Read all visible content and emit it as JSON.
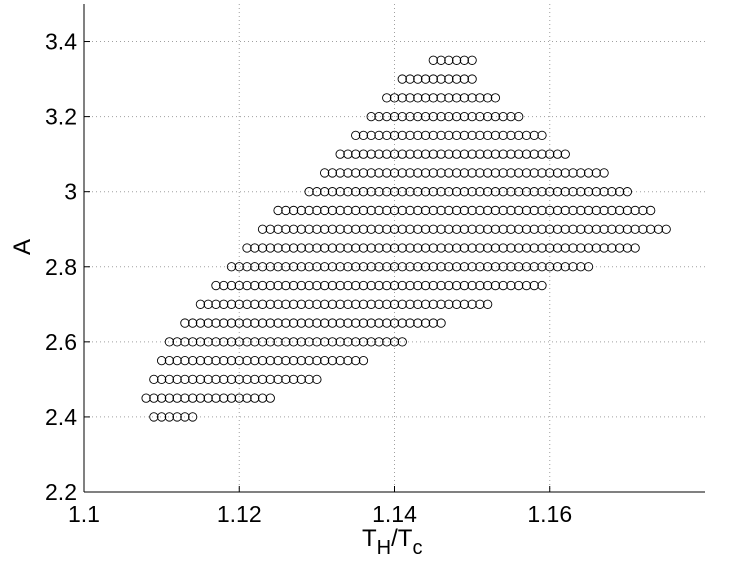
{
  "chart_data": {
    "type": "scatter",
    "title": "",
    "xlabel": "T_H/T_c",
    "xlabel_parts": {
      "main": "T",
      "sub1": "H",
      "slash": "/",
      "main2": "T",
      "sub2": "c"
    },
    "ylabel": "A",
    "xlim": [
      1.1,
      1.18
    ],
    "ylim": [
      2.2,
      3.5
    ],
    "xticks": [
      1.1,
      1.12,
      1.14,
      1.16
    ],
    "xtick_labels": [
      "1.1",
      "1.12",
      "1.14",
      "1.16"
    ],
    "yticks": [
      2.2,
      2.4,
      2.6,
      2.8,
      3.0,
      3.2,
      3.4
    ],
    "ytick_labels": [
      "2.2",
      "2.4",
      "2.6",
      "2.8",
      "3",
      "3.2",
      "3.4"
    ],
    "grid": true,
    "marker": "open-circle",
    "x_step": 0.001,
    "rows": [
      {
        "y": 2.4,
        "x_start": 1.109,
        "x_end": 1.114
      },
      {
        "y": 2.45,
        "x_start": 1.108,
        "x_end": 1.124
      },
      {
        "y": 2.5,
        "x_start": 1.109,
        "x_end": 1.13
      },
      {
        "y": 2.55,
        "x_start": 1.11,
        "x_end": 1.136
      },
      {
        "y": 2.6,
        "x_start": 1.111,
        "x_end": 1.141
      },
      {
        "y": 2.65,
        "x_start": 1.113,
        "x_end": 1.146
      },
      {
        "y": 2.7,
        "x_start": 1.115,
        "x_end": 1.152
      },
      {
        "y": 2.75,
        "x_start": 1.117,
        "x_end": 1.159
      },
      {
        "y": 2.8,
        "x_start": 1.119,
        "x_end": 1.165
      },
      {
        "y": 2.85,
        "x_start": 1.121,
        "x_end": 1.171
      },
      {
        "y": 2.9,
        "x_start": 1.123,
        "x_end": 1.175
      },
      {
        "y": 2.95,
        "x_start": 1.125,
        "x_end": 1.173
      },
      {
        "y": 3.0,
        "x_start": 1.129,
        "x_end": 1.17
      },
      {
        "y": 3.05,
        "x_start": 1.131,
        "x_end": 1.167
      },
      {
        "y": 3.1,
        "x_start": 1.133,
        "x_end": 1.162
      },
      {
        "y": 3.15,
        "x_start": 1.135,
        "x_end": 1.159
      },
      {
        "y": 3.2,
        "x_start": 1.137,
        "x_end": 1.156
      },
      {
        "y": 3.25,
        "x_start": 1.139,
        "x_end": 1.153
      },
      {
        "y": 3.3,
        "x_start": 1.141,
        "x_end": 1.15
      },
      {
        "y": 3.35,
        "x_start": 1.145,
        "x_end": 1.15
      }
    ]
  }
}
